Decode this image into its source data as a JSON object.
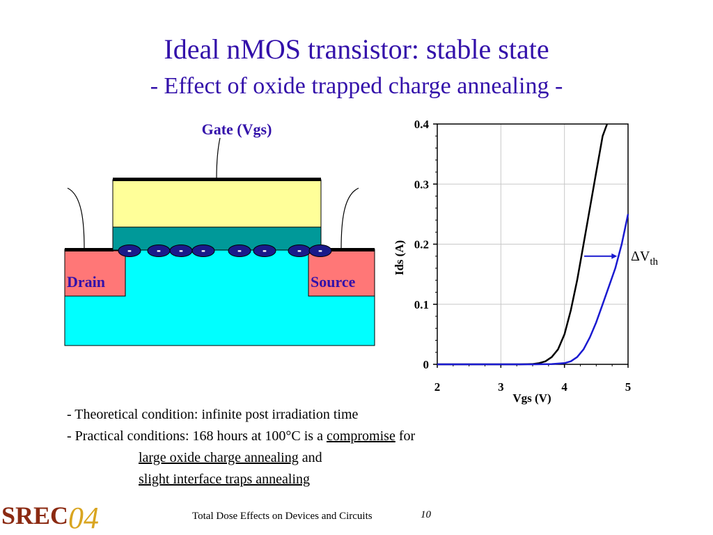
{
  "slide": {
    "title": "Ideal nMOS transistor: stable state",
    "subtitle": "- Effect of oxide trapped charge annealing -"
  },
  "device": {
    "gate_label": "Gate (Vgs)",
    "drain_label": "Drain",
    "source_label": "Source",
    "charge_symbol": "-",
    "charge_count": 8
  },
  "chart_data": {
    "type": "line",
    "xlabel": "Vgs (V)",
    "ylabel": "Ids (A)",
    "xlim": [
      2,
      5
    ],
    "ylim": [
      0,
      0.4
    ],
    "x_ticks": [
      "2",
      "3",
      "4",
      "5"
    ],
    "y_ticks": [
      "0",
      "0.1",
      "0.2",
      "0.3",
      "0.4"
    ],
    "grid": true,
    "annotation": {
      "prefix": "ΔV",
      "subscript": "th",
      "arrow_at_y": 0.18
    },
    "series": [
      {
        "color": "#000000",
        "x": [
          2.0,
          3.0,
          3.3,
          3.5,
          3.6,
          3.7,
          3.8,
          3.9,
          4.0,
          4.1,
          4.2,
          4.3,
          4.4,
          4.5,
          4.6,
          4.67
        ],
        "y": [
          0.0,
          0.0,
          0.0,
          0.0005,
          0.002,
          0.005,
          0.012,
          0.025,
          0.05,
          0.09,
          0.14,
          0.2,
          0.26,
          0.32,
          0.38,
          0.4
        ]
      },
      {
        "color": "#1a1ad0",
        "x": [
          2.0,
          3.0,
          3.5,
          3.8,
          4.0,
          4.1,
          4.2,
          4.3,
          4.4,
          4.5,
          4.6,
          4.7,
          4.8,
          4.9,
          5.0
        ],
        "y": [
          0.0,
          0.0,
          0.0,
          0.0005,
          0.002,
          0.005,
          0.012,
          0.025,
          0.045,
          0.07,
          0.1,
          0.13,
          0.16,
          0.2,
          0.25
        ]
      }
    ]
  },
  "bullets": {
    "line1": "- Theoretical condition: infinite post irradiation time",
    "line2_pre": "- Practical conditions: 168 hours at 100°C is a ",
    "line2_u": "compromise",
    "line2_post": " for",
    "line3_u": "large oxide charge annealing",
    "line3_post": " and",
    "line4_u": "slight interface traps annealing"
  },
  "footer": {
    "text": "Total Dose Effects on Devices and Circuits",
    "page": "10",
    "logo_text": "SREC",
    "logo_year": "04"
  }
}
